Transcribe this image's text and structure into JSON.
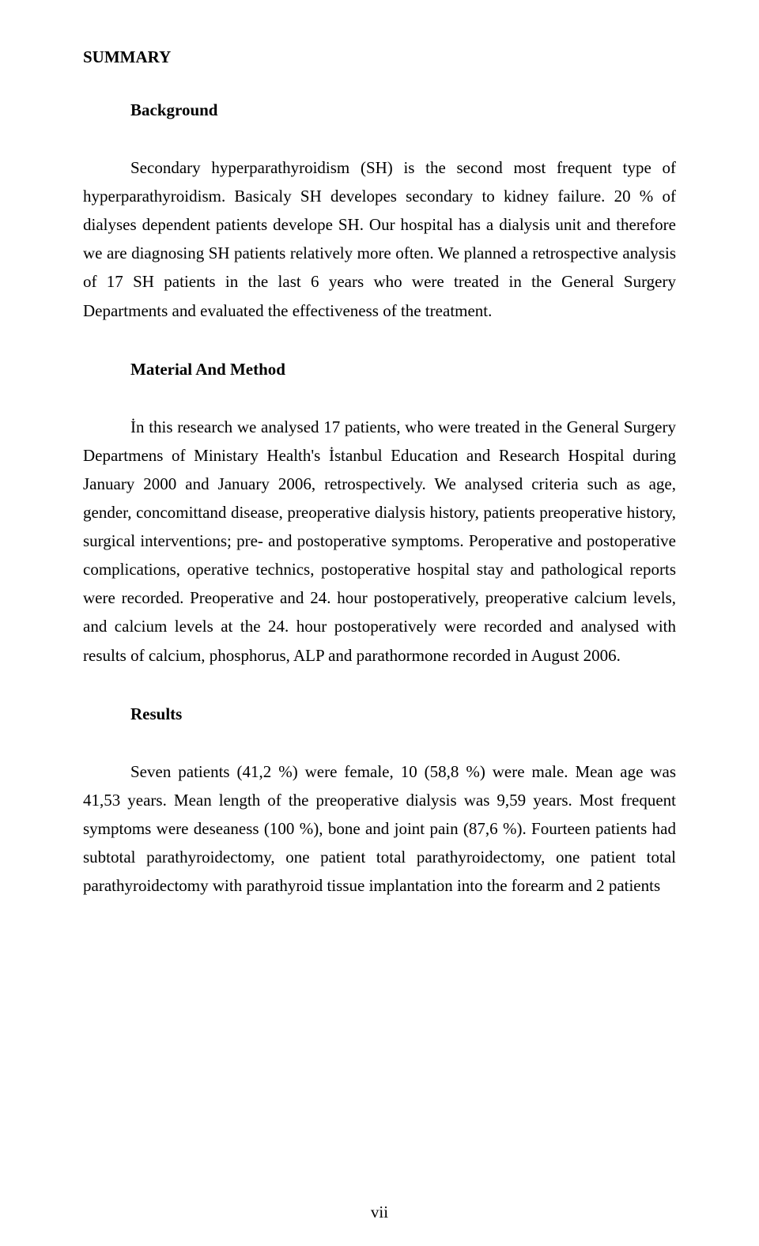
{
  "title": "SUMMARY",
  "sections": {
    "background": {
      "heading": "Background",
      "paragraph": "Secondary hyperparathyroidism (SH) is the second most frequent type of hyperparathyroidism. Basicaly SH developes secondary to kidney failure. 20 % of dialyses dependent patients develope SH. Our hospital has a dialysis unit and therefore we are diagnosing SH patients relatively more often. We planned a retrospective analysis of 17 SH patients in the last 6 years who were treated in the General Surgery Departments and evaluated the effectiveness of the treatment."
    },
    "material": {
      "heading": "Material And Method",
      "paragraph": "İn this research we analysed 17 patients, who were treated in the General Surgery Departmens of Ministary Health's İstanbul Education and Research Hospital during January 2000 and January 2006, retrospectively. We analysed criteria such as age, gender, concomittand disease, preoperative dialysis history, patients preoperative history, surgical interventions; pre- and postoperative symptoms. Peroperative and postoperative complications, operative technics, postoperative hospital stay and pathological reports were recorded. Preoperative and 24. hour postoperatively, preoperative calcium levels, and calcium levels at the 24. hour postoperatively were recorded and analysed with results of calcium, phosphorus, ALP and parathormone recorded in August 2006."
    },
    "results": {
      "heading": "Results",
      "paragraph": "Seven patients (41,2 %) were female, 10 (58,8 %) were male. Mean age was 41,53 years. Mean length of the preoperative dialysis was 9,59 years. Most frequent symptoms were deseaness (100 %), bone and joint pain (87,6 %). Fourteen patients had subtotal parathyroidectomy, one patient total parathyroidectomy, one patient total parathyroidectomy with parathyroid tissue implantation into the forearm and 2 patients"
    }
  },
  "page_number": "vii"
}
